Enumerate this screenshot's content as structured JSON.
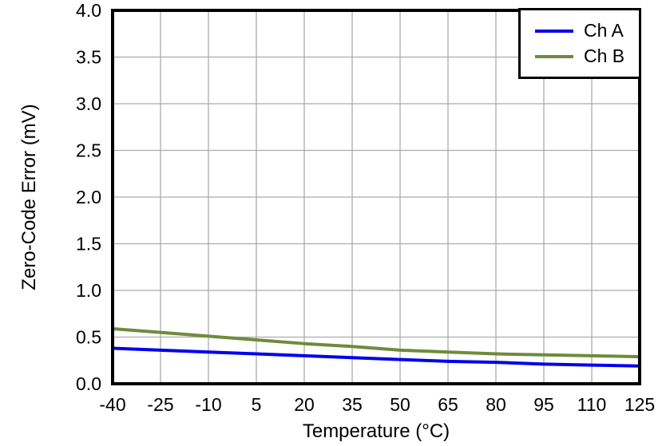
{
  "figure": {
    "background": "#ffffff"
  },
  "chart_data": {
    "type": "line",
    "title": "",
    "xlabel": "Temperature (°C)",
    "ylabel": "Zero-Code Error (mV)",
    "xlim": [
      -40,
      125
    ],
    "ylim": [
      0,
      4
    ],
    "xticks": [
      -40,
      -25,
      -10,
      5,
      20,
      35,
      50,
      65,
      80,
      95,
      110,
      125
    ],
    "yticks": [
      0,
      0.5,
      1,
      1.5,
      2,
      2.5,
      3,
      3.5,
      4
    ],
    "ytick_labels": [
      "0.0",
      "0.5",
      "1.0",
      "1.5",
      "2.0",
      "2.5",
      "3.0",
      "3.5",
      "4.0"
    ],
    "grid": true,
    "grid_color": "#ababab",
    "frame_color": "#000000",
    "legend_position": "top-right",
    "x": [
      -40,
      -25,
      -10,
      5,
      20,
      35,
      50,
      65,
      80,
      95,
      110,
      125
    ],
    "series": [
      {
        "name": "Ch A",
        "color": "#0000ee",
        "values": [
          0.38,
          0.36,
          0.34,
          0.32,
          0.3,
          0.28,
          0.26,
          0.24,
          0.23,
          0.21,
          0.2,
          0.19
        ]
      },
      {
        "name": "Ch B",
        "color": "#6e8b3d",
        "values": [
          0.59,
          0.55,
          0.51,
          0.47,
          0.43,
          0.4,
          0.36,
          0.34,
          0.32,
          0.31,
          0.3,
          0.29
        ]
      }
    ]
  }
}
